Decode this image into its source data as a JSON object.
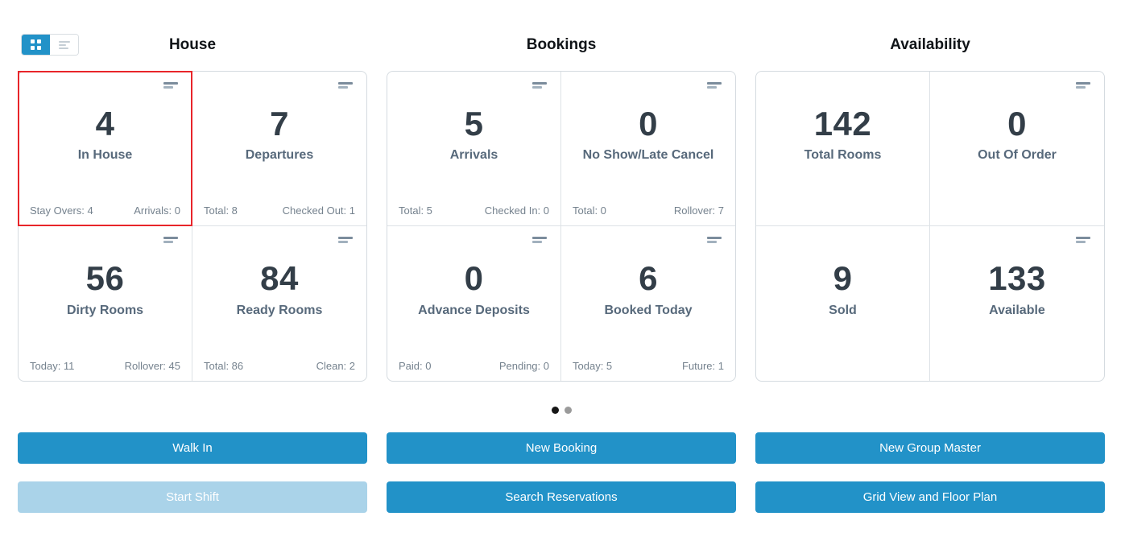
{
  "colors": {
    "accent": "#2292c8",
    "accent_disabled": "#aad3e9",
    "highlight": "#e8252a"
  },
  "view_toggle": {
    "grid_label": "grid view",
    "list_label": "list view"
  },
  "pagination": {
    "dot_count": 2,
    "active_index": 0
  },
  "sections": [
    {
      "title": "House",
      "cards": [
        {
          "value": "4",
          "label": "In House",
          "footer_left": "Stay Overs: 4",
          "footer_right": "Arrivals: 0",
          "highlighted": true,
          "has_menu_icon": true
        },
        {
          "value": "7",
          "label": "Departures",
          "footer_left": "Total: 8",
          "footer_right": "Checked Out: 1",
          "highlighted": false,
          "has_menu_icon": true
        },
        {
          "value": "56",
          "label": "Dirty Rooms",
          "footer_left": "Today: 11",
          "footer_right": "Rollover: 45",
          "highlighted": false,
          "has_menu_icon": true
        },
        {
          "value": "84",
          "label": "Ready Rooms",
          "footer_left": "Total: 86",
          "footer_right": "Clean: 2",
          "highlighted": false,
          "has_menu_icon": true
        }
      ],
      "buttons": [
        {
          "label": "Walk In",
          "disabled": false
        },
        {
          "label": "Start Shift",
          "disabled": true
        }
      ]
    },
    {
      "title": "Bookings",
      "cards": [
        {
          "value": "5",
          "label": "Arrivals",
          "footer_left": "Total: 5",
          "footer_right": "Checked In: 0",
          "highlighted": false,
          "has_menu_icon": true
        },
        {
          "value": "0",
          "label": "No Show/Late Cancel",
          "footer_left": "Total: 0",
          "footer_right": "Rollover: 7",
          "highlighted": false,
          "has_menu_icon": true
        },
        {
          "value": "0",
          "label": "Advance Deposits",
          "footer_left": "Paid: 0",
          "footer_right": "Pending: 0",
          "highlighted": false,
          "has_menu_icon": true
        },
        {
          "value": "6",
          "label": "Booked Today",
          "footer_left": "Today: 5",
          "footer_right": "Future: 1",
          "highlighted": false,
          "has_menu_icon": true
        }
      ],
      "buttons": [
        {
          "label": "New Booking",
          "disabled": false
        },
        {
          "label": "Search Reservations",
          "disabled": false
        }
      ]
    },
    {
      "title": "Availability",
      "cards": [
        {
          "value": "142",
          "label": "Total Rooms",
          "footer_left": "",
          "footer_right": "",
          "highlighted": false,
          "has_menu_icon": false
        },
        {
          "value": "0",
          "label": "Out Of Order",
          "footer_left": "",
          "footer_right": "",
          "highlighted": false,
          "has_menu_icon": true
        },
        {
          "value": "9",
          "label": "Sold",
          "footer_left": "",
          "footer_right": "",
          "highlighted": false,
          "has_menu_icon": false
        },
        {
          "value": "133",
          "label": "Available",
          "footer_left": "",
          "footer_right": "",
          "highlighted": false,
          "has_menu_icon": true
        }
      ],
      "buttons": [
        {
          "label": "New Group Master",
          "disabled": false
        },
        {
          "label": "Grid View and Floor Plan",
          "disabled": false
        }
      ]
    }
  ]
}
